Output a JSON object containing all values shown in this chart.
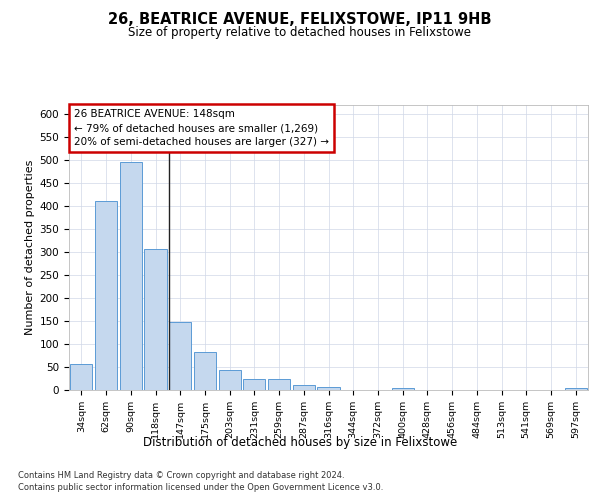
{
  "title": "26, BEATRICE AVENUE, FELIXSTOWE, IP11 9HB",
  "subtitle": "Size of property relative to detached houses in Felixstowe",
  "xlabel": "Distribution of detached houses by size in Felixstowe",
  "ylabel": "Number of detached properties",
  "bar_color": "#c5d8ee",
  "bar_edge_color": "#5b9bd5",
  "background_color": "#ffffff",
  "grid_color": "#d0d8e8",
  "categories": [
    "34sqm",
    "62sqm",
    "90sqm",
    "118sqm",
    "147sqm",
    "175sqm",
    "203sqm",
    "231sqm",
    "259sqm",
    "287sqm",
    "316sqm",
    "344sqm",
    "372sqm",
    "400sqm",
    "428sqm",
    "456sqm",
    "484sqm",
    "513sqm",
    "541sqm",
    "569sqm",
    "597sqm"
  ],
  "values": [
    57,
    412,
    495,
    307,
    148,
    82,
    44,
    25,
    25,
    10,
    7,
    0,
    0,
    4,
    0,
    0,
    0,
    0,
    0,
    0,
    4
  ],
  "property_bin_index": 4,
  "annotation_text": "26 BEATRICE AVENUE: 148sqm\n← 79% of detached houses are smaller (1,269)\n20% of semi-detached houses are larger (327) →",
  "annotation_box_color": "#ffffff",
  "annotation_box_edge_color": "#cc0000",
  "vline_color": "#222222",
  "footer_line1": "Contains HM Land Registry data © Crown copyright and database right 2024.",
  "footer_line2": "Contains public sector information licensed under the Open Government Licence v3.0.",
  "ylim": [
    0,
    620
  ],
  "yticks": [
    0,
    50,
    100,
    150,
    200,
    250,
    300,
    350,
    400,
    450,
    500,
    550,
    600
  ]
}
